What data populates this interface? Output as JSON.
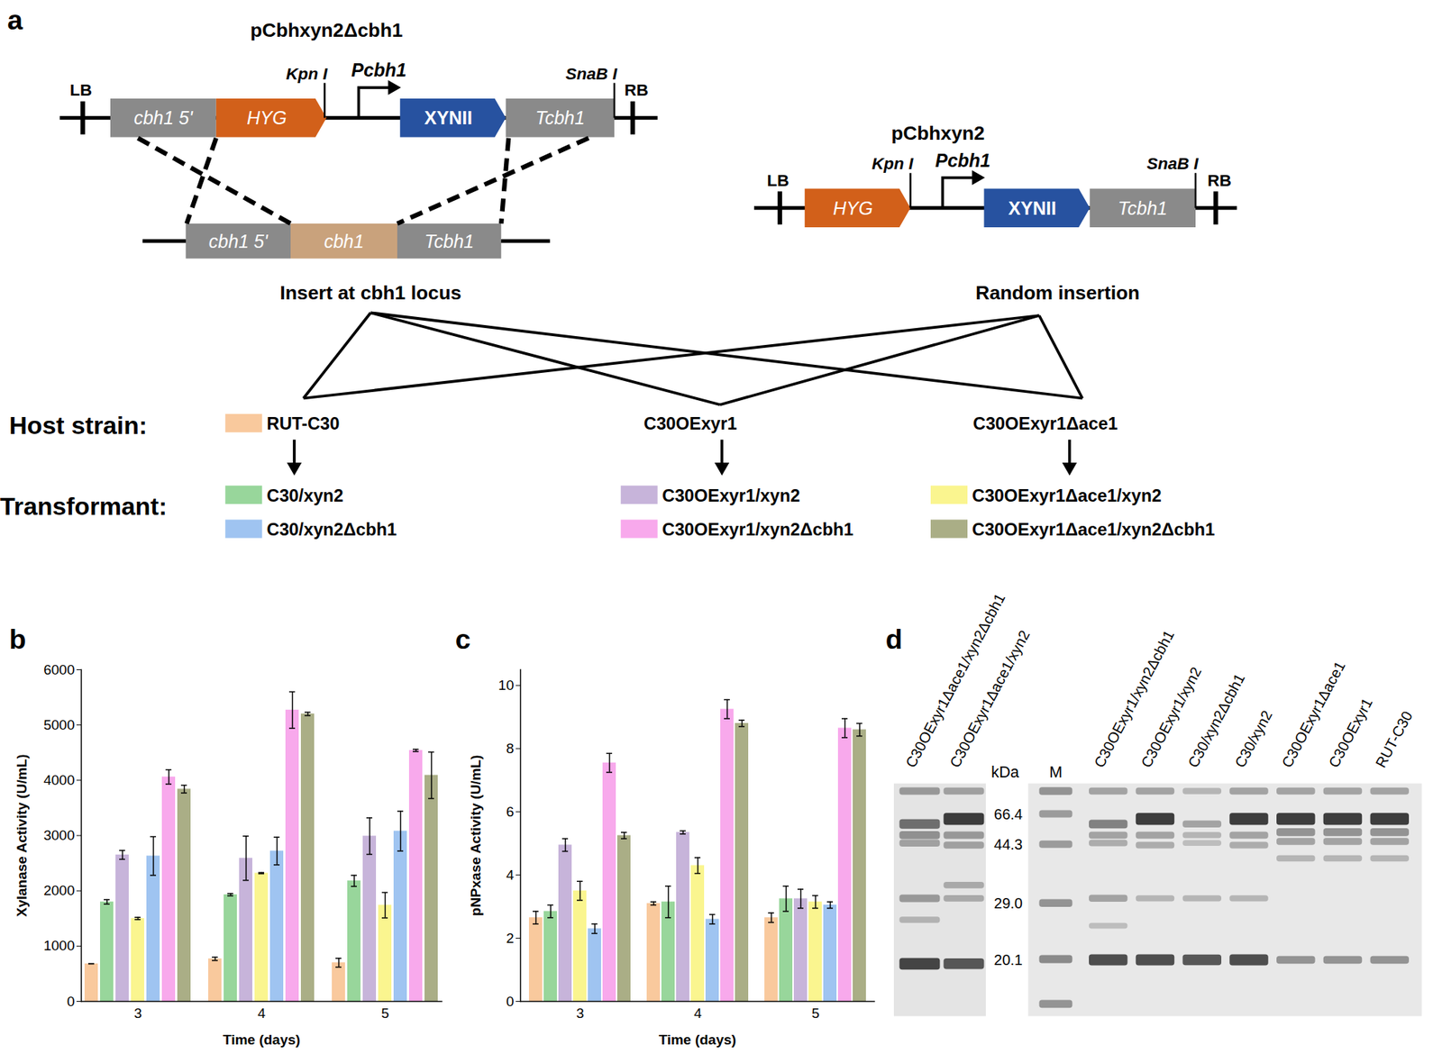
{
  "chart_data": [
    {
      "type": "bar",
      "title": "b",
      "xlabel": "Time (days)",
      "ylabel": "Xylanase Activity (U/mL)",
      "categories": [
        "3",
        "4",
        "5"
      ],
      "ylim": [
        0,
        6000
      ],
      "yticks": [
        0,
        1000,
        2000,
        3000,
        4000,
        5000,
        6000
      ],
      "series": [
        {
          "name": "RUT-C30",
          "color": "#f9c99d",
          "values": [
            680,
            770,
            700
          ],
          "errors": [
            0,
            30,
            80
          ]
        },
        {
          "name": "C30/xyn2",
          "color": "#98d69b",
          "values": [
            1800,
            1930,
            2180
          ],
          "errors": [
            40,
            20,
            100
          ]
        },
        {
          "name": "C30OExyr1/xyn2",
          "color": "#c7b4da",
          "values": [
            2650,
            2590,
            2990
          ],
          "errors": [
            80,
            400,
            330
          ]
        },
        {
          "name": "C30OExyr1Δace1/xyn2",
          "color": "#faf58f",
          "values": [
            1500,
            2320,
            1740
          ],
          "errors": [
            20,
            10,
            230
          ]
        },
        {
          "name": "C30/xyn2Δcbh1",
          "color": "#9fc4f1",
          "values": [
            2630,
            2720,
            3080
          ],
          "errors": [
            350,
            250,
            360
          ]
        },
        {
          "name": "C30OExyr1/xyn2Δcbh1",
          "color": "#f8a9ec",
          "values": [
            4060,
            5270,
            4540
          ],
          "errors": [
            130,
            330,
            20
          ]
        },
        {
          "name": "C30OExyr1Δace1/xyn2Δcbh1",
          "color": "#aaae86",
          "values": [
            3840,
            5200,
            4090
          ],
          "errors": [
            70,
            30,
            420
          ]
        }
      ]
    },
    {
      "type": "bar",
      "title": "c",
      "xlabel": "Time (days)",
      "ylabel": "pNPxase Activity (U/mL)",
      "categories": [
        "3",
        "4",
        "5"
      ],
      "ylim": [
        0,
        10.5
      ],
      "yticks": [
        0,
        2,
        4,
        6,
        8,
        10
      ],
      "series": [
        {
          "name": "RUT-C30",
          "color": "#f9c99d",
          "values": [
            2.65,
            3.1,
            2.65
          ],
          "errors": [
            0.2,
            0.05,
            0.15
          ]
        },
        {
          "name": "C30/xyn2",
          "color": "#98d69b",
          "values": [
            2.85,
            3.15,
            3.25
          ],
          "errors": [
            0.2,
            0.5,
            0.4
          ]
        },
        {
          "name": "C30OExyr1/xyn2",
          "color": "#c7b4da",
          "values": [
            4.95,
            5.35,
            3.25
          ],
          "errors": [
            0.2,
            0.05,
            0.3
          ]
        },
        {
          "name": "C30OExyr1Δace1/xyn2",
          "color": "#faf58f",
          "values": [
            3.5,
            4.3,
            3.15
          ],
          "errors": [
            0.3,
            0.25,
            0.2
          ]
        },
        {
          "name": "C30/xyn2Δcbh1",
          "color": "#9fc4f1",
          "values": [
            2.3,
            2.6,
            3.05
          ],
          "errors": [
            0.15,
            0.15,
            0.1
          ]
        },
        {
          "name": "C30OExyr1/xyn2Δcbh1",
          "color": "#f8a9ec",
          "values": [
            7.55,
            9.25,
            8.65
          ],
          "errors": [
            0.3,
            0.3,
            0.3
          ]
        },
        {
          "name": "C30OExyr1Δace1/xyn2Δcbh1",
          "color": "#aaae86",
          "values": [
            5.25,
            8.8,
            8.6
          ],
          "errors": [
            0.1,
            0.1,
            0.2
          ]
        }
      ]
    }
  ],
  "diagram": {
    "title": "a",
    "constructs": [
      {
        "title": "pCbhxyn2Δcbh1",
        "left_border": "LB",
        "right_border": "RB",
        "site_left": "Kpn I",
        "promoter": "Pcbh1",
        "site_right": "SnaB I",
        "parts": [
          "cbh1 5'",
          "HYG",
          "XYNII",
          "Tcbh1"
        ],
        "locus": [
          "cbh1 5'",
          "cbh1",
          "Tcbh1"
        ]
      },
      {
        "title": "pCbhxyn2",
        "left_border": "LB",
        "right_border": "RB",
        "site_left": "Kpn I",
        "promoter": "Pcbh1",
        "site_right": "SnaB I",
        "parts": [
          "HYG",
          "XYNII",
          "Tcbh1"
        ]
      }
    ],
    "insertions": [
      "Insert at cbh1 locus",
      "Random insertion"
    ],
    "host_label": "Host strain:",
    "hosts": [
      "RUT-C30",
      "C30OExyr1",
      "C30OExyr1Δace1"
    ],
    "transformant_label": "Transformant:",
    "transformants": [
      [
        "C30/xyn2",
        "C30/xyn2Δcbh1"
      ],
      [
        "C30OExyr1/xyn2",
        "C30OExyr1/xyn2Δcbh1"
      ],
      [
        "C30OExyr1Δace1/xyn2",
        "C30OExyr1Δace1/xyn2Δcbh1"
      ]
    ]
  },
  "gel": {
    "title": "d",
    "unit_label": "kDa",
    "marker_label": "M",
    "markers": [
      66.4,
      44.3,
      {
        "value": 29,
        "label": "29.0"
      },
      20.1
    ],
    "marker_bands": [
      [
        90,
        0.5
      ],
      [
        66.4,
        0.45
      ],
      [
        44.3,
        0.45
      ],
      [
        29,
        0.5
      ],
      [
        20.1,
        0.55
      ],
      [
        15,
        0.5
      ]
    ],
    "left_lanes": [
      {
        "label": "C30OExyr1Δace1/xyn2Δcbh1",
        "bands": [
          [
            90,
            0.45
          ],
          [
            58,
            0.7
          ],
          [
            50,
            0.5
          ],
          [
            45,
            0.4
          ],
          [
            30,
            0.45
          ],
          [
            26,
            0.3
          ],
          [
            19.5,
            0.95
          ]
        ]
      },
      {
        "label": "C30OExyr1Δace1/xyn2",
        "bands": [
          [
            90,
            0.4
          ],
          [
            62,
            1.0
          ],
          [
            50,
            0.45
          ],
          [
            44,
            0.4
          ],
          [
            33,
            0.35
          ],
          [
            30,
            0.35
          ],
          [
            19.5,
            0.85
          ]
        ]
      }
    ],
    "right_lanes": [
      {
        "label": "C30OExyr1/xyn2Δcbh1",
        "bands": [
          [
            90,
            0.4
          ],
          [
            58,
            0.6
          ],
          [
            50,
            0.4
          ],
          [
            45,
            0.35
          ],
          [
            30,
            0.4
          ],
          [
            25,
            0.25
          ],
          [
            20,
            0.9
          ]
        ]
      },
      {
        "label": "C30OExyr1/xyn2",
        "bands": [
          [
            90,
            0.4
          ],
          [
            62,
            1.0
          ],
          [
            50,
            0.4
          ],
          [
            44,
            0.35
          ],
          [
            30,
            0.3
          ],
          [
            20,
            0.9
          ]
        ]
      },
      {
        "label": "C30/xyn2Δcbh1",
        "bands": [
          [
            90,
            0.3
          ],
          [
            58,
            0.4
          ],
          [
            50,
            0.3
          ],
          [
            45,
            0.25
          ],
          [
            30,
            0.3
          ],
          [
            20,
            0.85
          ]
        ]
      },
      {
        "label": "C30/xyn2",
        "bands": [
          [
            90,
            0.4
          ],
          [
            62,
            1.0
          ],
          [
            50,
            0.4
          ],
          [
            44,
            0.35
          ],
          [
            30,
            0.3
          ],
          [
            20,
            0.9
          ]
        ]
      },
      {
        "label": "C30OExyr1Δace1",
        "bands": [
          [
            90,
            0.4
          ],
          [
            62,
            1.0
          ],
          [
            52,
            0.5
          ],
          [
            46,
            0.4
          ],
          [
            40,
            0.3
          ],
          [
            20,
            0.5
          ]
        ]
      },
      {
        "label": "C30OExyr1",
        "bands": [
          [
            90,
            0.4
          ],
          [
            62,
            1.0
          ],
          [
            52,
            0.5
          ],
          [
            46,
            0.4
          ],
          [
            40,
            0.3
          ],
          [
            20,
            0.5
          ]
        ]
      },
      {
        "label": "RUT-C30",
        "bands": [
          [
            90,
            0.4
          ],
          [
            62,
            1.0
          ],
          [
            52,
            0.5
          ],
          [
            46,
            0.4
          ],
          [
            40,
            0.3
          ],
          [
            20,
            0.5
          ]
        ]
      }
    ]
  }
}
